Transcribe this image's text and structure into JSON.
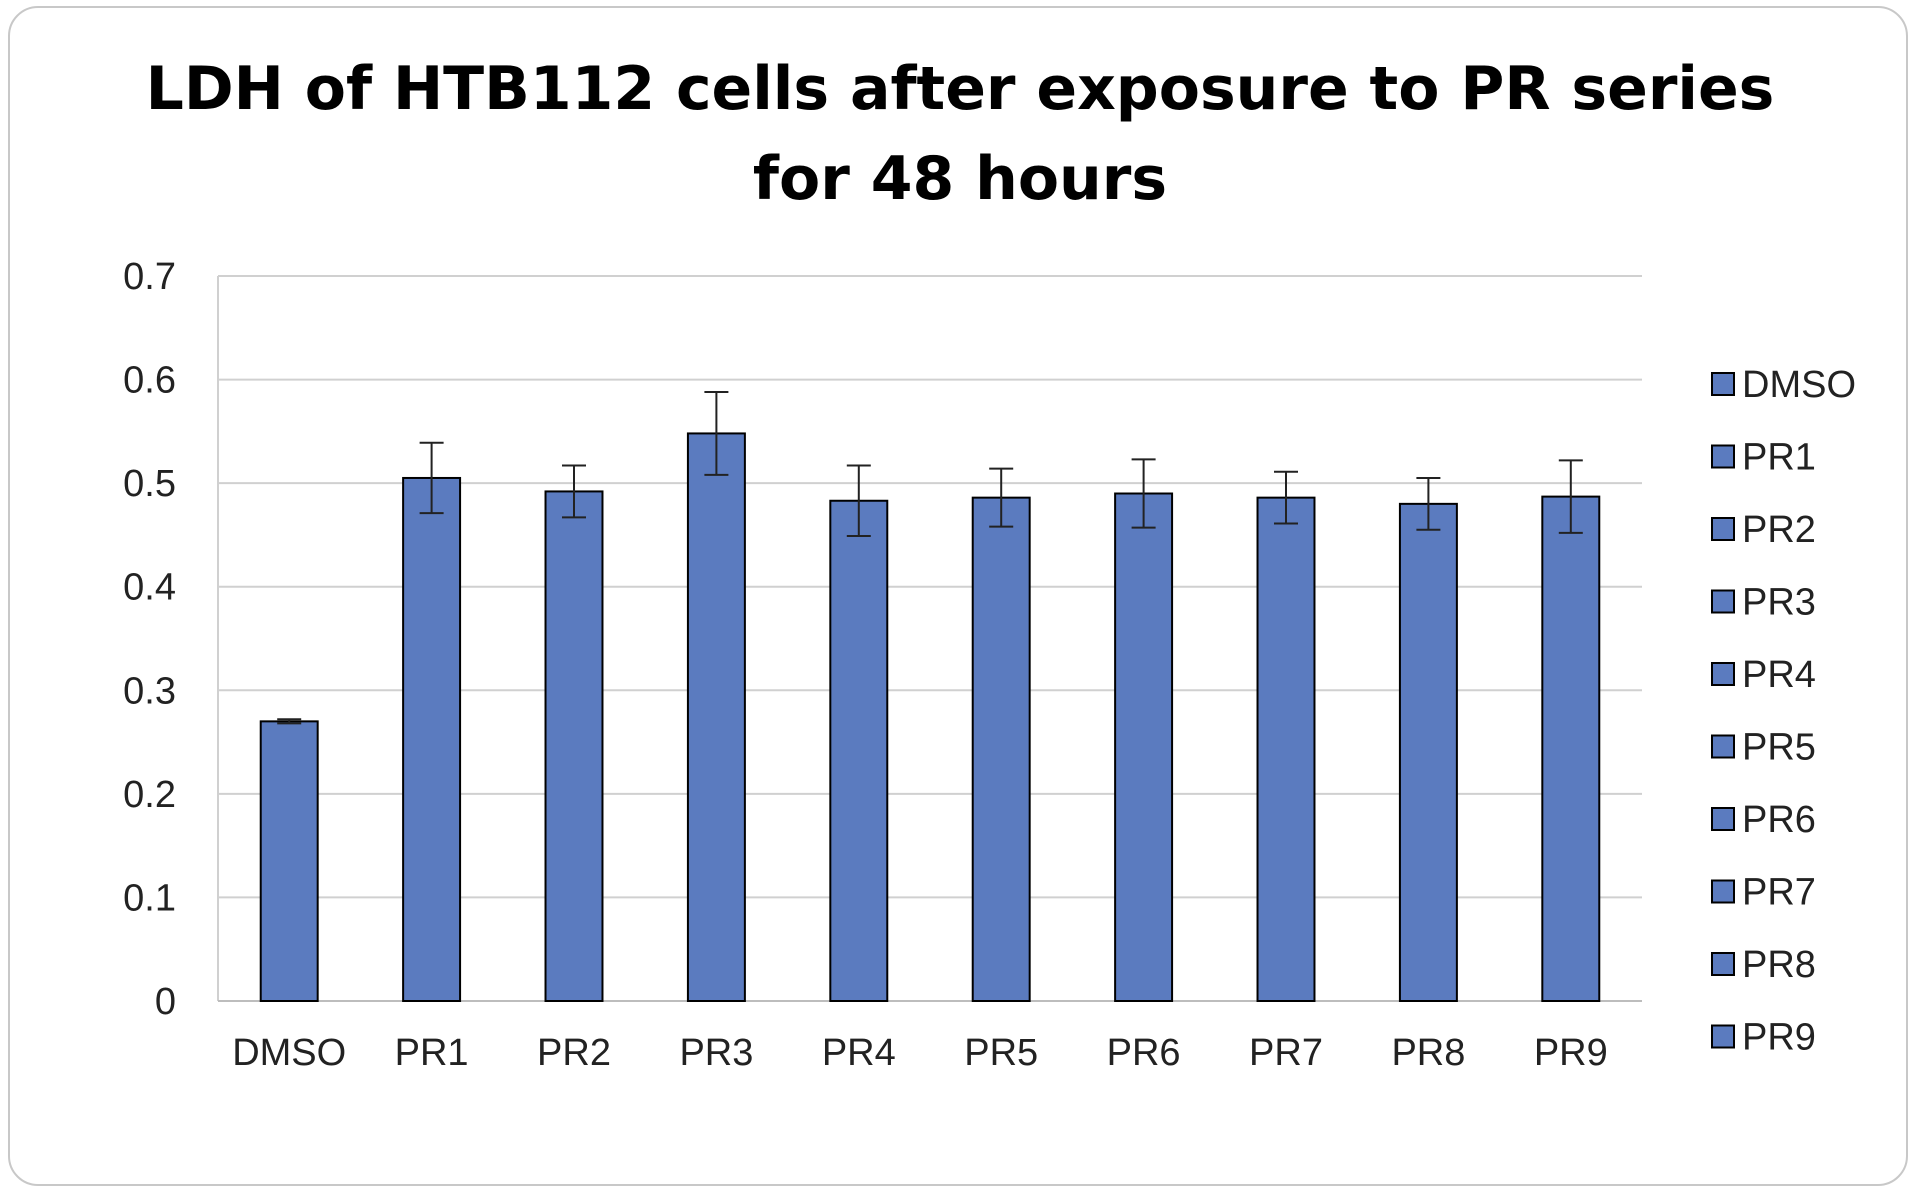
{
  "chart_data": {
    "type": "bar",
    "title_lines": [
      "LDH of HTB112 cells after exposure to PR series",
      "for 48 hours"
    ],
    "xlabel": "",
    "ylabel": "",
    "categories": [
      "DMSO",
      "PR1",
      "PR2",
      "PR3",
      "PR4",
      "PR5",
      "PR6",
      "PR7",
      "PR8",
      "PR9"
    ],
    "values": [
      0.27,
      0.505,
      0.492,
      0.548,
      0.483,
      0.486,
      0.49,
      0.486,
      0.48,
      0.487
    ],
    "errors": [
      0.002,
      0.034,
      0.025,
      0.04,
      0.034,
      0.028,
      0.033,
      0.025,
      0.025,
      0.035
    ],
    "ylim": [
      0,
      0.7
    ],
    "yticks": [
      "0",
      "0.1",
      "0.2",
      "0.3",
      "0.4",
      "0.5",
      "0.6",
      "0.7"
    ],
    "grid": true,
    "legend_position": "right",
    "legend": [
      "DMSO",
      "PR1",
      "PR2",
      "PR3",
      "PR4",
      "PR5",
      "PR6",
      "PR7",
      "PR8",
      "PR9"
    ],
    "bar_color": "#5b7bbf"
  }
}
